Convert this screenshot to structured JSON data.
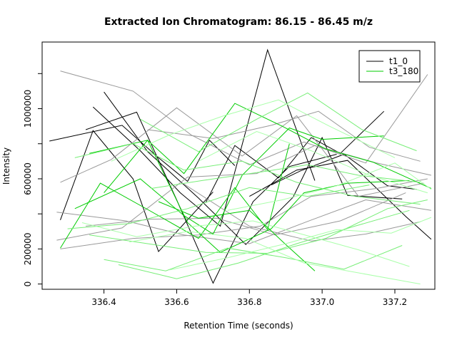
{
  "chart_data": {
    "type": "line",
    "title": "Extracted Ion Chromatogram: 86.15 - 86.45 m/z",
    "xlabel": "Retention Time (seconds)",
    "ylabel": "Intensity",
    "xlim": [
      336.23,
      337.31
    ],
    "ylim": [
      -30000,
      1380000
    ],
    "xticks": [
      336.4,
      336.6,
      336.8,
      337.0,
      337.2
    ],
    "xtick_labels": [
      "336.4",
      "336.6",
      "336.8",
      "337.0",
      "337.2"
    ],
    "yticks": [
      0,
      200000,
      600000,
      1000000
    ],
    "ytick_labels": [
      "0",
      "200000",
      "600000",
      "1000000"
    ],
    "legend": {
      "position": "top-right",
      "entries": [
        {
          "label": "t1_0",
          "color": "#000000"
        },
        {
          "label": "t3_180",
          "color": "#00cc00"
        }
      ]
    },
    "series": [
      {
        "color": "#000000",
        "points": [
          [
            336.25,
            815000
          ],
          [
            336.45,
            905000
          ],
          [
            336.55,
            720000
          ],
          [
            336.63,
            585000
          ],
          [
            336.69,
            820000
          ],
          [
            336.76,
            675000
          ]
        ]
      },
      {
        "color": "#000000",
        "points": [
          [
            336.28,
            365000
          ],
          [
            336.37,
            875000
          ],
          [
            336.48,
            600000
          ],
          [
            336.55,
            185000
          ],
          [
            336.7,
            525000
          ]
        ]
      },
      {
        "color": "#000000",
        "points": [
          [
            336.35,
            880000
          ],
          [
            336.49,
            980000
          ],
          [
            336.6,
            480000
          ],
          [
            336.7,
            5000
          ],
          [
            336.81,
            470000
          ],
          [
            336.91,
            670000
          ],
          [
            337.04,
            740000
          ]
        ]
      },
      {
        "color": "#000000",
        "points": [
          [
            336.37,
            1010000
          ],
          [
            336.5,
            760000
          ],
          [
            336.61,
            520000
          ],
          [
            336.72,
            330000
          ],
          [
            336.85,
            1335000
          ],
          [
            336.98,
            590000
          ]
        ]
      },
      {
        "color": "#000000",
        "points": [
          [
            336.4,
            1095000
          ],
          [
            336.52,
            755000
          ],
          [
            336.66,
            490000
          ],
          [
            336.79,
            225000
          ],
          [
            336.92,
            495000
          ],
          [
            337.0,
            835000
          ],
          [
            337.07,
            505000
          ],
          [
            337.22,
            485000
          ]
        ]
      },
      {
        "color": "#000000",
        "points": [
          [
            336.68,
            465000
          ],
          [
            336.76,
            790000
          ],
          [
            336.88,
            605000
          ],
          [
            336.97,
            835000
          ],
          [
            337.05,
            745000
          ],
          [
            337.17,
            985000
          ]
        ]
      },
      {
        "color": "#000000",
        "points": [
          [
            336.8,
            500000
          ],
          [
            336.93,
            650000
          ],
          [
            337.07,
            705000
          ],
          [
            337.23,
            385000
          ],
          [
            337.3,
            255000
          ]
        ]
      },
      {
        "color": "#000000",
        "points": [
          [
            336.86,
            565000
          ],
          [
            336.94,
            645000
          ],
          [
            337.06,
            740000
          ],
          [
            337.18,
            560000
          ],
          [
            337.26,
            540000
          ]
        ]
      },
      {
        "color": "#999999",
        "points": [
          [
            336.28,
            1215000
          ],
          [
            336.48,
            1100000
          ],
          [
            336.64,
            850000
          ],
          [
            336.8,
            680000
          ],
          [
            336.95,
            810000
          ],
          [
            337.12,
            690000
          ],
          [
            337.29,
            1195000
          ]
        ]
      },
      {
        "color": "#999999",
        "points": [
          [
            336.27,
            410000
          ],
          [
            336.46,
            360000
          ],
          [
            336.62,
            280000
          ],
          [
            336.8,
            230000
          ],
          [
            336.97,
            365000
          ],
          [
            337.12,
            480000
          ],
          [
            337.3,
            420000
          ]
        ]
      },
      {
        "color": "#999999",
        "points": [
          [
            336.28,
            580000
          ],
          [
            336.42,
            710000
          ],
          [
            336.6,
            1005000
          ],
          [
            336.78,
            730000
          ],
          [
            336.93,
            960000
          ],
          [
            337.1,
            500000
          ],
          [
            337.28,
            575000
          ]
        ]
      },
      {
        "color": "#999999",
        "points": [
          [
            336.27,
            250000
          ],
          [
            336.45,
            320000
          ],
          [
            336.63,
            610000
          ],
          [
            336.82,
            630000
          ],
          [
            336.98,
            790000
          ],
          [
            337.15,
            690000
          ],
          [
            337.3,
            620000
          ]
        ]
      },
      {
        "color": "#999999",
        "points": [
          [
            336.28,
            200000
          ],
          [
            336.48,
            260000
          ],
          [
            336.66,
            280000
          ],
          [
            336.83,
            330000
          ],
          [
            336.97,
            500000
          ],
          [
            337.15,
            545000
          ],
          [
            337.29,
            600000
          ]
        ]
      },
      {
        "color": "#999999",
        "points": [
          [
            336.52,
            880000
          ],
          [
            336.7,
            830000
          ],
          [
            336.86,
            905000
          ],
          [
            336.99,
            985000
          ],
          [
            337.13,
            780000
          ],
          [
            337.27,
            700000
          ]
        ]
      },
      {
        "color": "#999999",
        "points": [
          [
            336.35,
            330000
          ],
          [
            336.53,
            370000
          ],
          [
            336.71,
            375000
          ],
          [
            336.87,
            280000
          ],
          [
            337.05,
            360000
          ],
          [
            337.23,
            520000
          ]
        ]
      },
      {
        "color": "#999999",
        "points": [
          [
            336.62,
            570000
          ],
          [
            336.8,
            330000
          ],
          [
            336.97,
            245000
          ],
          [
            337.12,
            285000
          ],
          [
            337.27,
            355000
          ]
        ]
      },
      {
        "color": "#00cc00",
        "points": [
          [
            336.28,
            205000
          ],
          [
            336.39,
            575000
          ],
          [
            336.52,
            425000
          ],
          [
            336.66,
            260000
          ],
          [
            336.76,
            550000
          ],
          [
            336.85,
            310000
          ],
          [
            336.91,
            800000
          ]
        ]
      },
      {
        "color": "#00cc00",
        "points": [
          [
            336.32,
            430000
          ],
          [
            336.5,
            600000
          ],
          [
            336.62,
            390000
          ],
          [
            336.7,
            285000
          ],
          [
            336.78,
            620000
          ],
          [
            336.91,
            890000
          ],
          [
            337.0,
            825000
          ],
          [
            337.17,
            845000
          ]
        ]
      },
      {
        "color": "#00cc00",
        "points": [
          [
            336.36,
            745000
          ],
          [
            336.52,
            820000
          ],
          [
            336.62,
            630000
          ],
          [
            336.76,
            1030000
          ],
          [
            336.89,
            900000
          ],
          [
            337.01,
            770000
          ],
          [
            337.14,
            695000
          ],
          [
            337.3,
            545000
          ]
        ]
      },
      {
        "color": "#00cc00",
        "points": [
          [
            336.4,
            520000
          ],
          [
            336.52,
            820000
          ],
          [
            336.63,
            350000
          ],
          [
            336.72,
            180000
          ],
          [
            336.86,
            315000
          ],
          [
            336.95,
            520000
          ],
          [
            337.07,
            575000
          ],
          [
            337.24,
            590000
          ]
        ]
      },
      {
        "color": "#00cc00",
        "points": [
          [
            336.55,
            470000
          ],
          [
            336.66,
            375000
          ],
          [
            336.8,
            420000
          ],
          [
            336.9,
            225000
          ],
          [
            336.98,
            75000
          ]
        ]
      },
      {
        "color": "#77ee77",
        "points": [
          [
            336.32,
            720000
          ],
          [
            336.48,
            800000
          ],
          [
            336.62,
            650000
          ],
          [
            336.78,
            700000
          ],
          [
            336.93,
            580000
          ],
          [
            337.09,
            500000
          ],
          [
            337.27,
            455000
          ]
        ]
      },
      {
        "color": "#77ee77",
        "points": [
          [
            336.36,
            280000
          ],
          [
            336.52,
            230000
          ],
          [
            336.68,
            180000
          ],
          [
            336.85,
            175000
          ],
          [
            337.01,
            260000
          ],
          [
            337.18,
            430000
          ],
          [
            337.29,
            480000
          ]
        ]
      },
      {
        "color": "#77ee77",
        "points": [
          [
            336.4,
            140000
          ],
          [
            336.57,
            75000
          ],
          [
            336.74,
            205000
          ],
          [
            336.9,
            150000
          ],
          [
            337.06,
            85000
          ],
          [
            337.22,
            220000
          ]
        ]
      },
      {
        "color": "#77ee77",
        "points": [
          [
            336.44,
            110000
          ],
          [
            336.6,
            30000
          ],
          [
            336.77,
            120000
          ],
          [
            336.93,
            230000
          ],
          [
            337.09,
            330000
          ],
          [
            337.24,
            420000
          ]
        ]
      },
      {
        "color": "#77ee77",
        "points": [
          [
            336.5,
            940000
          ],
          [
            336.66,
            755000
          ],
          [
            336.82,
            940000
          ],
          [
            336.96,
            1090000
          ],
          [
            337.11,
            880000
          ],
          [
            337.26,
            760000
          ]
        ]
      },
      {
        "color": "#77ee77",
        "points": [
          [
            336.3,
            315000
          ],
          [
            336.47,
            345000
          ],
          [
            336.63,
            430000
          ],
          [
            336.8,
            550000
          ],
          [
            336.96,
            500000
          ],
          [
            337.13,
            565000
          ]
        ]
      },
      {
        "color": "#77ee77",
        "points": [
          [
            336.53,
            545000
          ],
          [
            336.67,
            590000
          ],
          [
            336.82,
            635000
          ],
          [
            336.96,
            680000
          ],
          [
            337.1,
            620000
          ],
          [
            337.27,
            580000
          ]
        ]
      },
      {
        "color": "#aaffaa",
        "points": [
          [
            336.42,
            700000
          ],
          [
            336.58,
            850000
          ],
          [
            336.73,
            960000
          ],
          [
            336.88,
            1050000
          ],
          [
            337.02,
            900000
          ],
          [
            337.2,
            720000
          ]
        ]
      },
      {
        "color": "#aaffaa",
        "points": [
          [
            336.47,
            240000
          ],
          [
            336.63,
            300000
          ],
          [
            336.79,
            260000
          ],
          [
            336.95,
            120000
          ],
          [
            337.11,
            60000
          ],
          [
            337.27,
            0
          ]
        ]
      },
      {
        "color": "#aaffaa",
        "points": [
          [
            336.58,
            80000
          ],
          [
            336.74,
            150000
          ],
          [
            336.9,
            230000
          ],
          [
            337.04,
            310000
          ],
          [
            337.19,
            290000
          ],
          [
            337.3,
            380000
          ]
        ]
      },
      {
        "color": "#aaffaa",
        "points": [
          [
            336.34,
            350000
          ],
          [
            336.49,
            270000
          ],
          [
            336.65,
            330000
          ],
          [
            336.81,
            360000
          ],
          [
            336.96,
            275000
          ],
          [
            337.1,
            195000
          ],
          [
            337.24,
            100000
          ]
        ]
      },
      {
        "color": "#aaffaa",
        "points": [
          [
            336.66,
            700000
          ],
          [
            336.82,
            870000
          ],
          [
            336.97,
            760000
          ],
          [
            337.13,
            620000
          ],
          [
            337.29,
            520000
          ]
        ]
      },
      {
        "color": "#aaffaa",
        "points": [
          [
            336.74,
            420000
          ],
          [
            336.89,
            480000
          ],
          [
            337.04,
            560000
          ],
          [
            337.2,
            690000
          ],
          [
            337.3,
            540000
          ]
        ]
      }
    ]
  }
}
